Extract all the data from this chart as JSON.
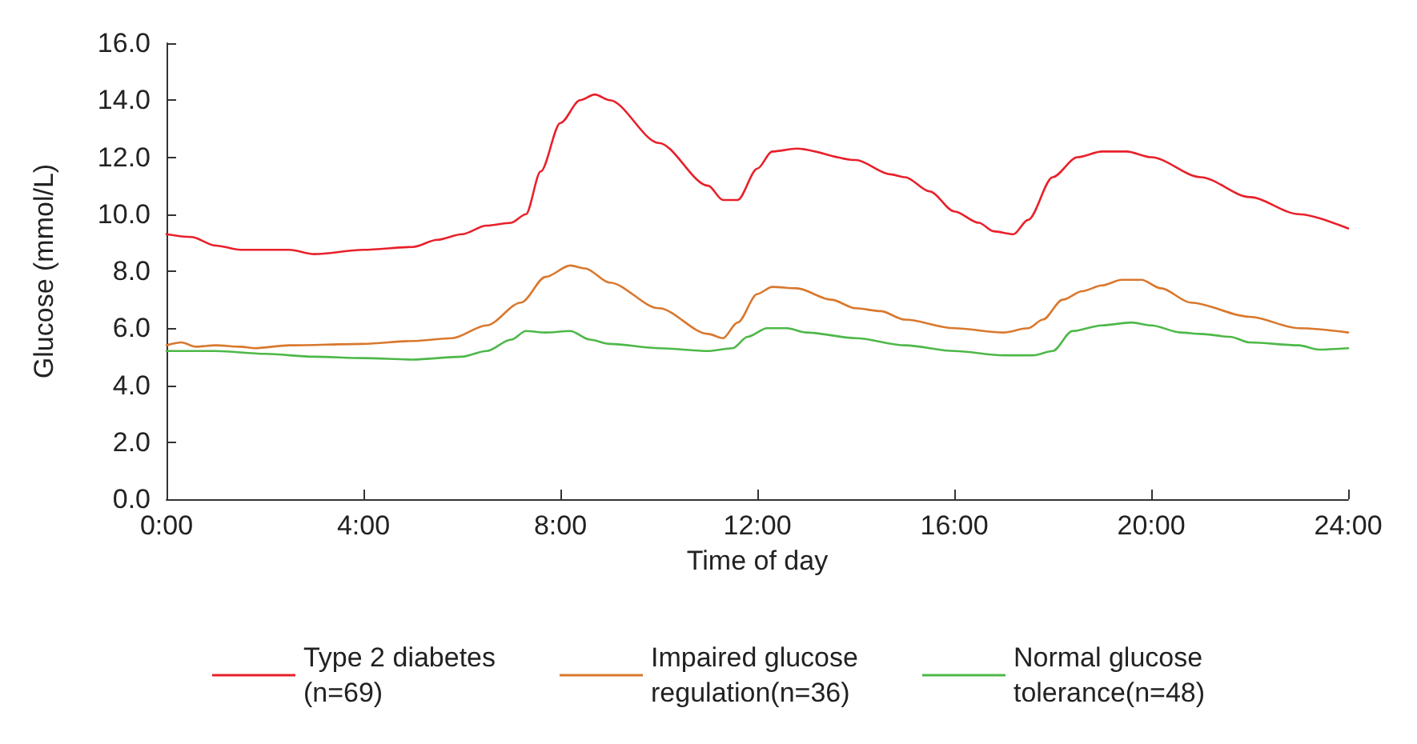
{
  "chart_data": {
    "type": "line",
    "xlabel": "Time of day",
    "ylabel": "Glucose (mmol/L)",
    "xlim": [
      0,
      24
    ],
    "ylim": [
      0,
      16
    ],
    "xticks": [
      {
        "value": 0,
        "label": "0:00"
      },
      {
        "value": 4,
        "label": "4:00"
      },
      {
        "value": 8,
        "label": "8:00"
      },
      {
        "value": 12,
        "label": "12:00"
      },
      {
        "value": 16,
        "label": "16:00"
      },
      {
        "value": 20,
        "label": "20:00"
      },
      {
        "value": 24,
        "label": "24:00"
      }
    ],
    "yticks": [
      {
        "value": 0,
        "label": "0.0"
      },
      {
        "value": 2,
        "label": "2.0"
      },
      {
        "value": 4,
        "label": "4.0"
      },
      {
        "value": 6,
        "label": "6.0"
      },
      {
        "value": 8,
        "label": "8.0"
      },
      {
        "value": 10,
        "label": "10.0"
      },
      {
        "value": 12,
        "label": "12.0"
      },
      {
        "value": 14,
        "label": "14.0"
      },
      {
        "value": 16,
        "label": "16.0"
      }
    ],
    "grid": false,
    "legend": "bottom",
    "marker": "none",
    "line_style": "solid",
    "series": [
      {
        "name": "Type 2 diabetes\n(n=69)",
        "color": "#e8202a",
        "x": [
          0,
          0.5,
          1,
          1.5,
          2.5,
          3,
          4,
          5,
          5.5,
          6,
          6.5,
          7,
          7.3,
          7.6,
          8,
          8.4,
          8.7,
          9,
          10,
          11,
          11.3,
          11.6,
          12,
          12.3,
          12.8,
          14,
          14.7,
          15,
          15.5,
          16,
          16.5,
          16.8,
          17.2,
          17.5,
          18,
          18.5,
          19,
          19.5,
          20,
          21,
          22,
          23,
          24
        ],
        "values": [
          9.3,
          9.2,
          8.9,
          8.75,
          8.75,
          8.6,
          8.75,
          8.85,
          9.1,
          9.3,
          9.6,
          9.7,
          10.0,
          11.5,
          13.2,
          14.0,
          14.2,
          14.0,
          12.5,
          11.0,
          10.5,
          10.5,
          11.6,
          12.2,
          12.3,
          11.9,
          11.4,
          11.3,
          10.8,
          10.1,
          9.7,
          9.4,
          9.3,
          9.8,
          11.3,
          12.0,
          12.2,
          12.2,
          12.0,
          11.3,
          10.6,
          10.0,
          9.5
        ]
      },
      {
        "name": "Impaired glucose\nregulation(n=36)",
        "color": "#d9782d",
        "x": [
          0,
          0.3,
          0.6,
          1,
          1.5,
          1.8,
          2.5,
          4,
          5,
          5.8,
          6.5,
          7.2,
          7.7,
          8.2,
          8.5,
          9,
          10,
          11,
          11.3,
          11.6,
          12,
          12.3,
          12.8,
          13.5,
          14,
          14.5,
          15,
          16,
          17,
          17.5,
          17.8,
          18.2,
          18.6,
          19,
          19.4,
          19.8,
          20.2,
          20.8,
          22,
          23,
          24
        ],
        "values": [
          5.4,
          5.5,
          5.35,
          5.4,
          5.35,
          5.3,
          5.4,
          5.45,
          5.55,
          5.65,
          6.1,
          6.9,
          7.8,
          8.2,
          8.1,
          7.6,
          6.7,
          5.8,
          5.65,
          6.2,
          7.2,
          7.45,
          7.4,
          7.0,
          6.7,
          6.6,
          6.3,
          6.0,
          5.85,
          6.0,
          6.3,
          7.0,
          7.3,
          7.5,
          7.7,
          7.7,
          7.4,
          6.9,
          6.4,
          6.0,
          5.85
        ]
      },
      {
        "name": "Normal glucose\ntolerance(n=48)",
        "color": "#4db848",
        "x": [
          0,
          1,
          2,
          3,
          4,
          5,
          6,
          6.5,
          7,
          7.3,
          7.7,
          8.2,
          8.6,
          9,
          10,
          11,
          11.5,
          11.8,
          12.2,
          12.6,
          13,
          14,
          15,
          16,
          17,
          17.6,
          18,
          18.4,
          19,
          19.6,
          20,
          20.6,
          21,
          21.6,
          22,
          23,
          23.4,
          24
        ],
        "values": [
          5.2,
          5.2,
          5.1,
          5.0,
          4.95,
          4.9,
          5.0,
          5.2,
          5.6,
          5.9,
          5.85,
          5.9,
          5.6,
          5.45,
          5.3,
          5.2,
          5.3,
          5.7,
          6.0,
          6.0,
          5.85,
          5.65,
          5.4,
          5.2,
          5.05,
          5.05,
          5.2,
          5.9,
          6.1,
          6.2,
          6.1,
          5.85,
          5.8,
          5.7,
          5.5,
          5.4,
          5.25,
          5.3
        ]
      }
    ]
  }
}
